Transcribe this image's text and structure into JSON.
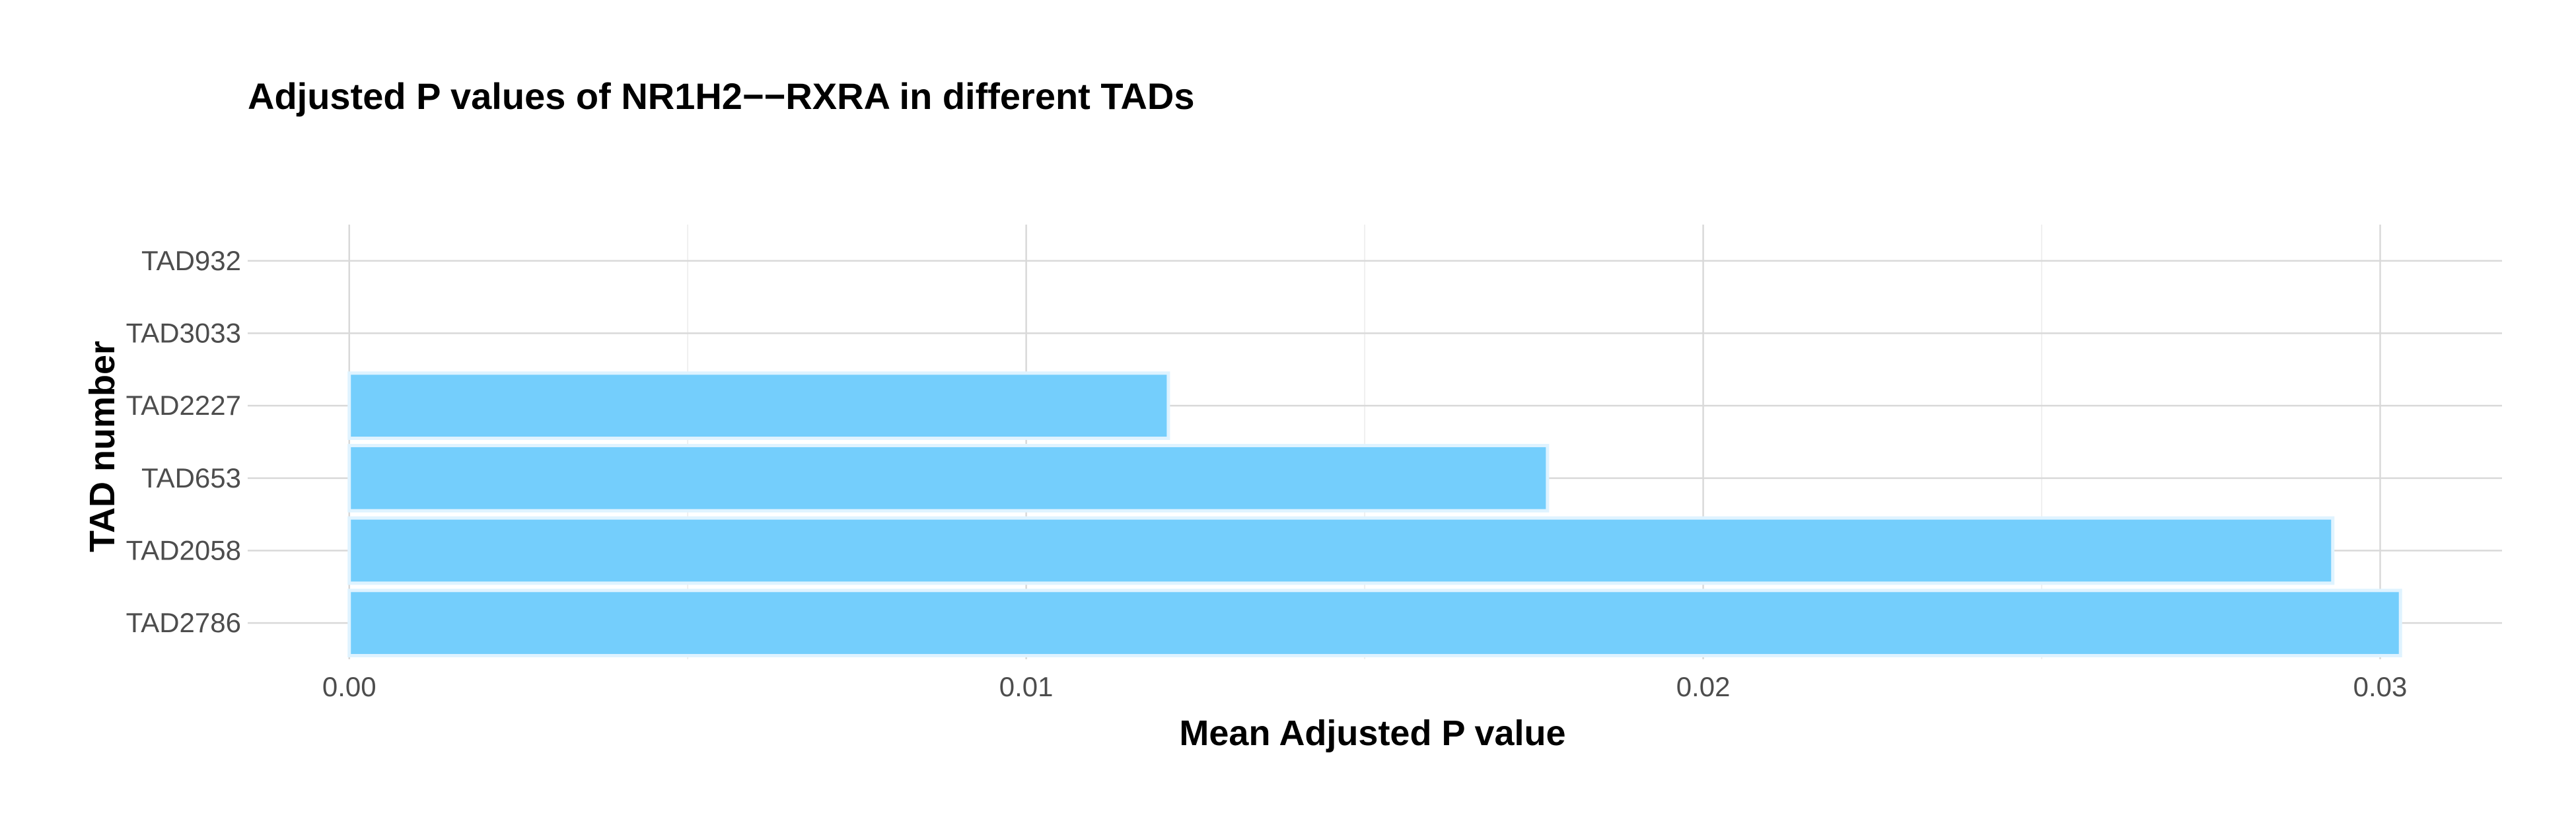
{
  "chart_data": {
    "type": "bar",
    "orientation": "horizontal",
    "title": "Adjusted P values of NR1H2−−RXRA in different TADs",
    "xlabel": "Mean Adjusted P value",
    "ylabel": "TAD number",
    "categories": [
      "TAD932",
      "TAD3033",
      "TAD2227",
      "TAD653",
      "TAD2058",
      "TAD2786"
    ],
    "values": [
      0.0,
      0.0,
      0.0121,
      0.0177,
      0.0293,
      0.0303
    ],
    "xlim": [
      -0.0015,
      0.0318
    ],
    "xticks": [
      0.0,
      0.01,
      0.02,
      0.03
    ],
    "xtick_labels": [
      "0.00",
      "0.01",
      "0.02",
      "0.03"
    ],
    "bar_color": "#74cefc",
    "grid": true,
    "legend": "none"
  }
}
